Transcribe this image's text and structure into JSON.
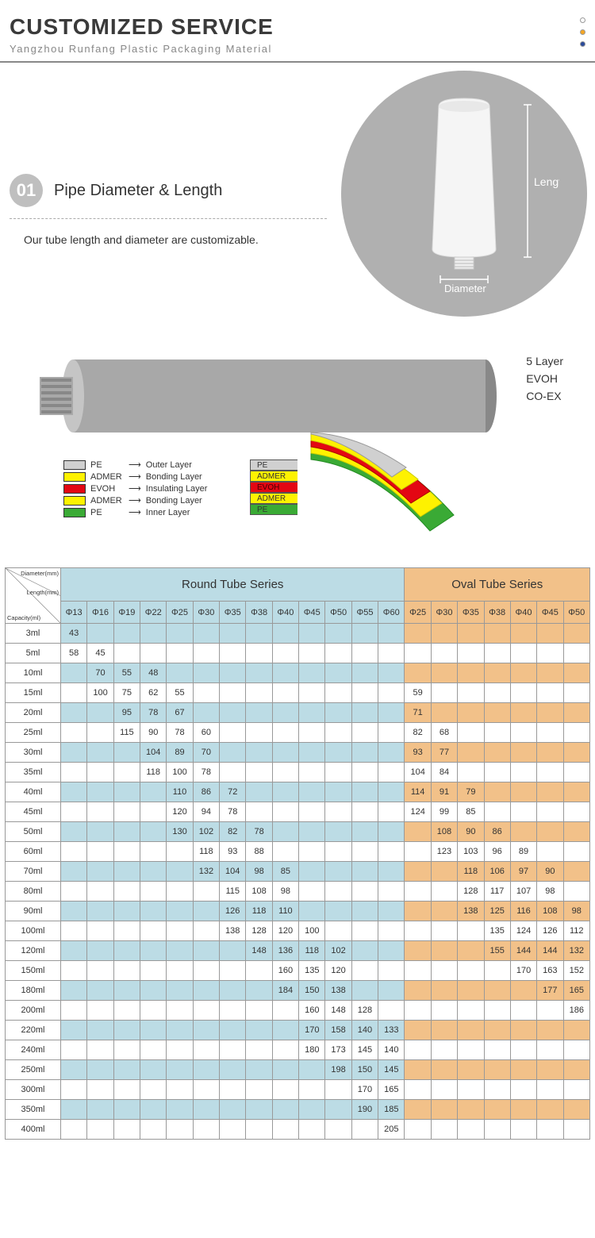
{
  "header": {
    "title": "CUSTOMIZED SERVICE",
    "subtitle": "Yangzhou Runfang Plastic Packaging Material",
    "dot_colors": [
      "#ffffff",
      "#f5a623",
      "#2a4b9b"
    ],
    "dot_border": "#999"
  },
  "section1": {
    "number": "01",
    "title": "Pipe Diameter & Length",
    "desc": "Our tube length and diameter are customizable.",
    "circle_bg": "#b0b0b0",
    "label_length": "Length",
    "label_diameter": "Diameter"
  },
  "layers_diagram": {
    "side_labels": [
      "5 Layer",
      "EVOH",
      "CO-EX"
    ],
    "legend": [
      {
        "color": "#d0d0d0",
        "name": "PE",
        "role": "Outer Layer"
      },
      {
        "color": "#fef200",
        "name": "ADMER",
        "role": "Bonding Layer"
      },
      {
        "color": "#e30613",
        "name": "EVOH",
        "role": "Insulating Layer"
      },
      {
        "color": "#fef200",
        "name": "ADMER",
        "role": "Bonding Layer"
      },
      {
        "color": "#3aaa35",
        "name": "PE",
        "role": "Inner Layer"
      }
    ],
    "slice_labels": [
      "PE",
      "ADMER",
      "EVOH",
      "ADMER",
      "PE"
    ],
    "tube_color": "#a8a8a8"
  },
  "table": {
    "diag_labels": [
      "Diameter(mm)",
      "Length(mm)",
      "Capacity(ml)"
    ],
    "round_title": "Round Tube Series",
    "oval_title": "Oval Tube Series",
    "row_header_bg": "#ffffff",
    "round_bg": "#bcdce5",
    "round_alt_bg": "#ffffff",
    "oval_bg": "#f2c189",
    "oval_alt_bg": "#ffffff",
    "border_color": "#8a8a8a",
    "round_cols": [
      "Φ13",
      "Φ16",
      "Φ19",
      "Φ22",
      "Φ25",
      "Φ30",
      "Φ35",
      "Φ38",
      "Φ40",
      "Φ45",
      "Φ50",
      "Φ55",
      "Φ60"
    ],
    "oval_cols": [
      "Φ25",
      "Φ30",
      "Φ35",
      "Φ38",
      "Φ40",
      "Φ45",
      "Φ50"
    ],
    "capacities": [
      "3ml",
      "5ml",
      "10ml",
      "15ml",
      "20ml",
      "25ml",
      "30ml",
      "35ml",
      "40ml",
      "45ml",
      "50ml",
      "60ml",
      "70ml",
      "80ml",
      "90ml",
      "100ml",
      "120ml",
      "150ml",
      "180ml",
      "200ml",
      "220ml",
      "240ml",
      "250ml",
      "300ml",
      "350ml",
      "400ml"
    ],
    "round_data": [
      [
        "43",
        "",
        "",
        "",
        "",
        "",
        "",
        "",
        "",
        "",
        "",
        "",
        ""
      ],
      [
        "58",
        "45",
        "",
        "",
        "",
        "",
        "",
        "",
        "",
        "",
        "",
        "",
        ""
      ],
      [
        "",
        "70",
        "55",
        "48",
        "",
        "",
        "",
        "",
        "",
        "",
        "",
        "",
        ""
      ],
      [
        "",
        "100",
        "75",
        "62",
        "55",
        "",
        "",
        "",
        "",
        "",
        "",
        "",
        ""
      ],
      [
        "",
        "",
        "95",
        "78",
        "67",
        "",
        "",
        "",
        "",
        "",
        "",
        "",
        ""
      ],
      [
        "",
        "",
        "115",
        "90",
        "78",
        "60",
        "",
        "",
        "",
        "",
        "",
        "",
        ""
      ],
      [
        "",
        "",
        "",
        "104",
        "89",
        "70",
        "",
        "",
        "",
        "",
        "",
        "",
        ""
      ],
      [
        "",
        "",
        "",
        "118",
        "100",
        "78",
        "",
        "",
        "",
        "",
        "",
        "",
        ""
      ],
      [
        "",
        "",
        "",
        "",
        "110",
        "86",
        "72",
        "",
        "",
        "",
        "",
        "",
        ""
      ],
      [
        "",
        "",
        "",
        "",
        "120",
        "94",
        "78",
        "",
        "",
        "",
        "",
        "",
        ""
      ],
      [
        "",
        "",
        "",
        "",
        "130",
        "102",
        "82",
        "78",
        "",
        "",
        "",
        "",
        ""
      ],
      [
        "",
        "",
        "",
        "",
        "",
        "118",
        "93",
        "88",
        "",
        "",
        "",
        "",
        ""
      ],
      [
        "",
        "",
        "",
        "",
        "",
        "132",
        "104",
        "98",
        "85",
        "",
        "",
        "",
        ""
      ],
      [
        "",
        "",
        "",
        "",
        "",
        "",
        "115",
        "108",
        "98",
        "",
        "",
        "",
        ""
      ],
      [
        "",
        "",
        "",
        "",
        "",
        "",
        "126",
        "118",
        "110",
        "",
        "",
        "",
        ""
      ],
      [
        "",
        "",
        "",
        "",
        "",
        "",
        "138",
        "128",
        "120",
        "100",
        "",
        "",
        ""
      ],
      [
        "",
        "",
        "",
        "",
        "",
        "",
        "",
        "148",
        "136",
        "118",
        "102",
        "",
        ""
      ],
      [
        "",
        "",
        "",
        "",
        "",
        "",
        "",
        "",
        "160",
        "135",
        "120",
        "",
        ""
      ],
      [
        "",
        "",
        "",
        "",
        "",
        "",
        "",
        "",
        "184",
        "150",
        "138",
        "",
        ""
      ],
      [
        "",
        "",
        "",
        "",
        "",
        "",
        "",
        "",
        "",
        "160",
        "148",
        "128",
        ""
      ],
      [
        "",
        "",
        "",
        "",
        "",
        "",
        "",
        "",
        "",
        "170",
        "158",
        "140",
        "133"
      ],
      [
        "",
        "",
        "",
        "",
        "",
        "",
        "",
        "",
        "",
        "180",
        "173",
        "145",
        "140"
      ],
      [
        "",
        "",
        "",
        "",
        "",
        "",
        "",
        "",
        "",
        "",
        "198",
        "150",
        "145"
      ],
      [
        "",
        "",
        "",
        "",
        "",
        "",
        "",
        "",
        "",
        "",
        "",
        "170",
        "165"
      ],
      [
        "",
        "",
        "",
        "",
        "",
        "",
        "",
        "",
        "",
        "",
        "",
        "190",
        "185"
      ],
      [
        "",
        "",
        "",
        "",
        "",
        "",
        "",
        "",
        "",
        "",
        "",
        "",
        "205"
      ]
    ],
    "oval_data": [
      [
        "",
        "",
        "",
        "",
        "",
        "",
        ""
      ],
      [
        "",
        "",
        "",
        "",
        "",
        "",
        ""
      ],
      [
        "",
        "",
        "",
        "",
        "",
        "",
        ""
      ],
      [
        "59",
        "",
        "",
        "",
        "",
        "",
        ""
      ],
      [
        "71",
        "",
        "",
        "",
        "",
        "",
        ""
      ],
      [
        "82",
        "68",
        "",
        "",
        "",
        "",
        ""
      ],
      [
        "93",
        "77",
        "",
        "",
        "",
        "",
        ""
      ],
      [
        "104",
        "84",
        "",
        "",
        "",
        "",
        ""
      ],
      [
        "114",
        "91",
        "79",
        "",
        "",
        "",
        ""
      ],
      [
        "124",
        "99",
        "85",
        "",
        "",
        "",
        ""
      ],
      [
        "",
        "108",
        "90",
        "86",
        "",
        "",
        ""
      ],
      [
        "",
        "123",
        "103",
        "96",
        "89",
        "",
        ""
      ],
      [
        "",
        "",
        "118",
        "106",
        "97",
        "90",
        ""
      ],
      [
        "",
        "",
        "128",
        "117",
        "107",
        "98",
        ""
      ],
      [
        "",
        "",
        "138",
        "125",
        "116",
        "108",
        "98"
      ],
      [
        "",
        "",
        "",
        "135",
        "124",
        "126",
        "112"
      ],
      [
        "",
        "",
        "",
        "155",
        "144",
        "144",
        "132"
      ],
      [
        "",
        "",
        "",
        "",
        "170",
        "163",
        "152"
      ],
      [
        "",
        "",
        "",
        "",
        "",
        "177",
        "165"
      ],
      [
        "",
        "",
        "",
        "",
        "",
        "",
        "186"
      ],
      [
        "",
        "",
        "",
        "",
        "",
        "",
        ""
      ],
      [
        "",
        "",
        "",
        "",
        "",
        "",
        ""
      ],
      [
        "",
        "",
        "",
        "",
        "",
        "",
        ""
      ],
      [
        "",
        "",
        "",
        "",
        "",
        "",
        ""
      ],
      [
        "",
        "",
        "",
        "",
        "",
        "",
        ""
      ],
      [
        "",
        "",
        "",
        "",
        "",
        "",
        ""
      ]
    ]
  }
}
